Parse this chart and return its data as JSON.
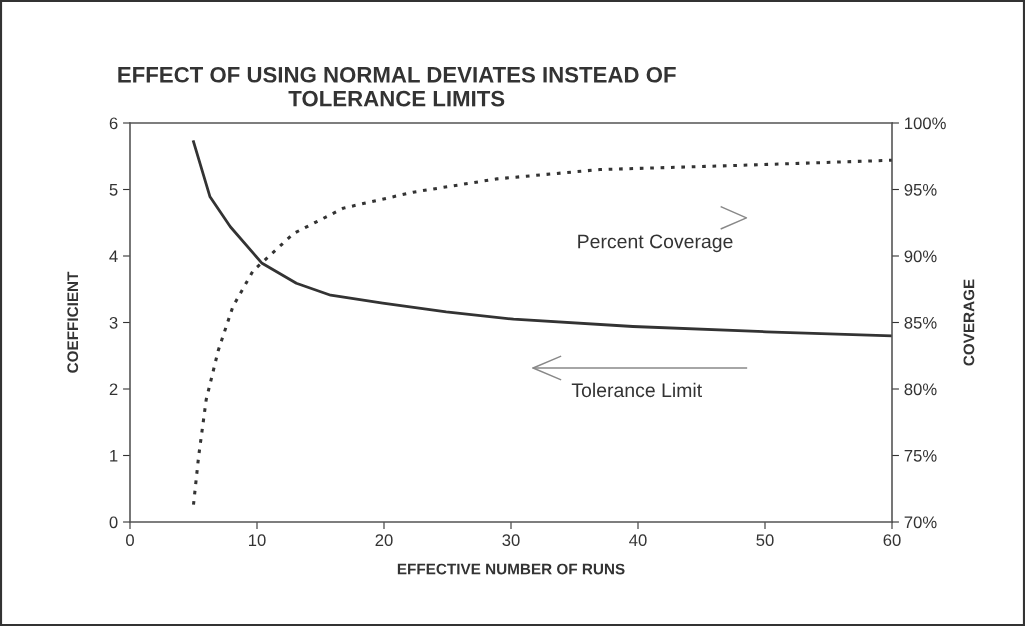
{
  "chart_data": {
    "type": "line",
    "title": "EFFECT OF USING NORMAL DEVIATES INSTEAD OF\nTOLERANCE LIMITS",
    "xlabel": "EFFECTIVE NUMBER OF RUNS",
    "ylabel": "COEFFICIENT",
    "y2label": "COVERAGE",
    "xlim": [
      0,
      60
    ],
    "xticks": [
      0,
      10,
      20,
      30,
      40,
      50,
      60
    ],
    "ylim": [
      0,
      6
    ],
    "yticks": [
      0,
      1,
      2,
      3,
      4,
      5,
      6
    ],
    "y2lim": [
      70,
      100
    ],
    "y2ticks": [
      {
        "value": 70,
        "label": "70%"
      },
      {
        "value": 75,
        "label": "75%"
      },
      {
        "value": 80,
        "label": "80%"
      },
      {
        "value": 85,
        "label": "85%"
      },
      {
        "value": 90,
        "label": "90%"
      },
      {
        "value": 95,
        "label": "95%"
      },
      {
        "value": 100,
        "label": "100%"
      }
    ],
    "grid": false,
    "legend": false,
    "series": [
      {
        "color": "#333333",
        "line_style": "solid",
        "x": [
          5,
          6.3,
          7.9,
          10.4,
          13.1,
          15.8,
          19.9,
          24.9,
          30.2,
          39.6,
          50.1,
          60
        ],
        "values": [
          5.72,
          4.89,
          4.44,
          3.89,
          3.59,
          3.41,
          3.29,
          3.16,
          3.05,
          2.94,
          2.86,
          2.8
        ]
      },
      {
        "color": "#333333",
        "line_style": "dotted",
        "axis": "y2",
        "x": [
          5,
          5.4,
          6,
          6.95,
          8.1,
          9.7,
          12.9,
          16.8,
          22.3,
          28.9,
          37,
          47.5,
          60
        ],
        "values": [
          71.3,
          74.9,
          79.2,
          82.9,
          86.2,
          88.9,
          91.7,
          93.6,
          94.8,
          95.8,
          96.5,
          96.8,
          97.2
        ]
      }
    ],
    "annotations": [
      "Percent Coverage",
      "Tolerance Limit"
    ]
  }
}
